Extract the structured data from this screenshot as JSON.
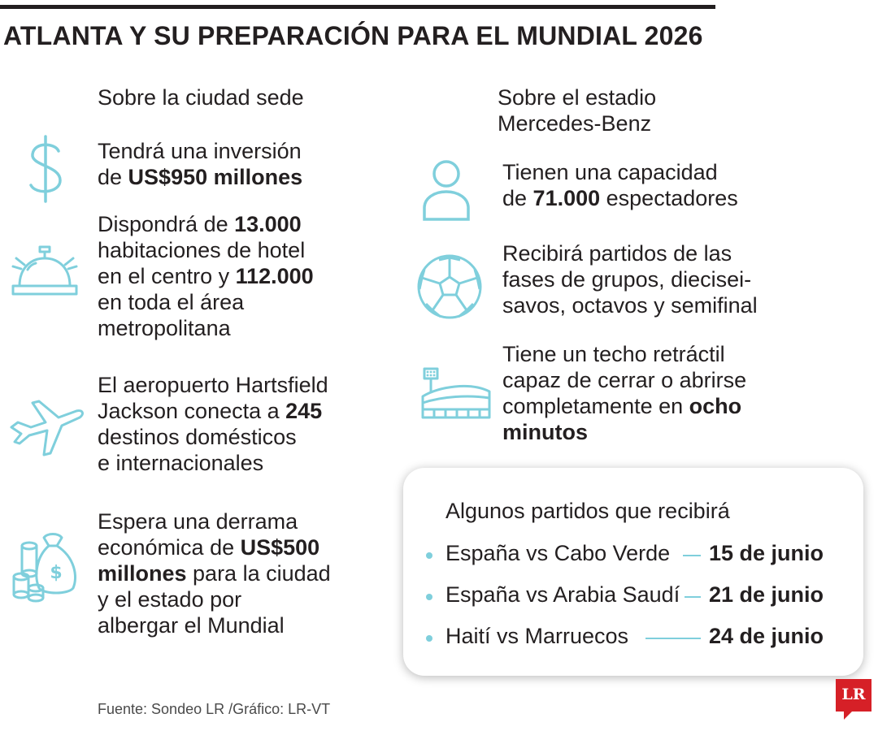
{
  "title": "ATLANTA Y SU PREPARACIÓN PARA EL MUNDIAL 2026",
  "left_column": {
    "heading": "Sobre la ciudad sede",
    "items": [
      {
        "icon": "dollar-icon",
        "parts": [
          {
            "t": "Tendrá una inversión"
          },
          {
            "br": true
          },
          {
            "t": "de "
          },
          {
            "t": "US$950 millones",
            "b": true
          }
        ]
      },
      {
        "icon": "hotel-bell-icon",
        "parts": [
          {
            "t": "Dispondrá de "
          },
          {
            "t": "13.000",
            "b": true
          },
          {
            "br": true
          },
          {
            "t": "habitaciones de hotel"
          },
          {
            "br": true
          },
          {
            "t": "en el centro y "
          },
          {
            "t": "112.000",
            "b": true
          },
          {
            "br": true
          },
          {
            "t": "en toda el área"
          },
          {
            "br": true
          },
          {
            "t": "metropolitana"
          }
        ]
      },
      {
        "icon": "airplane-icon",
        "parts": [
          {
            "t": "El aeropuerto Hartsfield"
          },
          {
            "br": true
          },
          {
            "t": "Jackson conecta a "
          },
          {
            "t": "245",
            "b": true
          },
          {
            "br": true
          },
          {
            "t": "destinos domésticos"
          },
          {
            "br": true
          },
          {
            "t": "e internacionales"
          }
        ]
      },
      {
        "icon": "money-bag-icon",
        "parts": [
          {
            "t": "Espera una derrama"
          },
          {
            "br": true
          },
          {
            "t": "económica de "
          },
          {
            "t": "US$500",
            "b": true
          },
          {
            "br": true
          },
          {
            "t": "millones",
            "b": true
          },
          {
            "t": " para la ciudad"
          },
          {
            "br": true
          },
          {
            "t": "y el estado por"
          },
          {
            "br": true
          },
          {
            "t": "albergar el Mundial"
          }
        ]
      }
    ]
  },
  "right_column": {
    "heading_line1": "Sobre el estadio",
    "heading_line2": "Mercedes-Benz",
    "items": [
      {
        "icon": "person-icon",
        "parts": [
          {
            "t": "Tienen una capacidad"
          },
          {
            "br": true
          },
          {
            "t": "de "
          },
          {
            "t": "71.000",
            "b": true
          },
          {
            "t": " espectadores"
          }
        ]
      },
      {
        "icon": "soccer-ball-icon",
        "parts": [
          {
            "t": "Recibirá partidos de las"
          },
          {
            "br": true
          },
          {
            "t": "fases de grupos, diecisei-"
          },
          {
            "br": true
          },
          {
            "t": "savos, octavos y semifinal"
          }
        ]
      },
      {
        "icon": "stadium-icon",
        "parts": [
          {
            "t": "Tiene un techo retráctil"
          },
          {
            "br": true
          },
          {
            "t": "capaz de cerrar o abrirse"
          },
          {
            "br": true
          },
          {
            "t": "completamente en "
          },
          {
            "t": "ocho",
            "b": true
          },
          {
            "br": true
          },
          {
            "t": "minutos",
            "b": true
          }
        ]
      }
    ]
  },
  "matches": {
    "title": "Algunos partidos que recibirá",
    "rows": [
      {
        "teams": "España vs Cabo Verde",
        "date": "15 de junio"
      },
      {
        "teams": "España vs Arabia Saudí",
        "date": "21 de junio"
      },
      {
        "teams": "Haití vs Marruecos",
        "date": "24 de junio"
      }
    ]
  },
  "source": "Fuente: Sondeo LR /Gráfico: LR-VT",
  "logo": "LR",
  "colors": {
    "accent": "#7fcfdc",
    "text": "#231f20",
    "logo": "#d62027"
  }
}
